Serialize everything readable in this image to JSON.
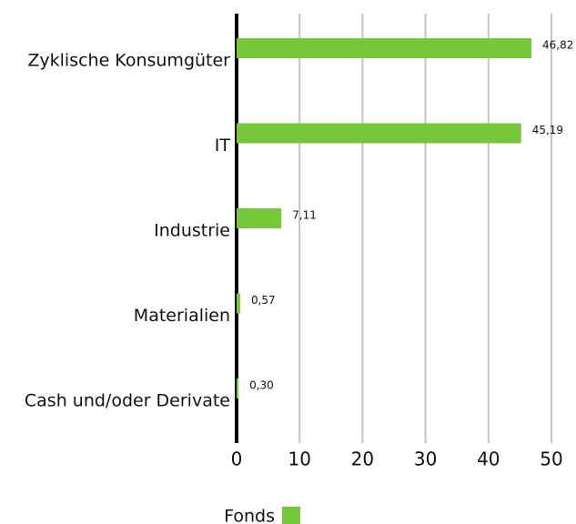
{
  "chart_data": {
    "type": "bar",
    "orientation": "horizontal",
    "categories": [
      "Zyklische Konsumgüter",
      "IT",
      "Industrie",
      "Materialien",
      "Cash und/oder Derivate"
    ],
    "series": [
      {
        "name": "Fonds",
        "color": "#76c73a",
        "values": [
          46.82,
          45.19,
          7.11,
          0.57,
          0.3
        ],
        "value_labels": [
          "46,82",
          "45,19",
          "7,11",
          "0,57",
          "0,30"
        ]
      }
    ],
    "xlim": [
      0,
      50
    ],
    "xticks": [
      0,
      10,
      20,
      30,
      40,
      50
    ],
    "grid": true,
    "legend": "bottom"
  }
}
